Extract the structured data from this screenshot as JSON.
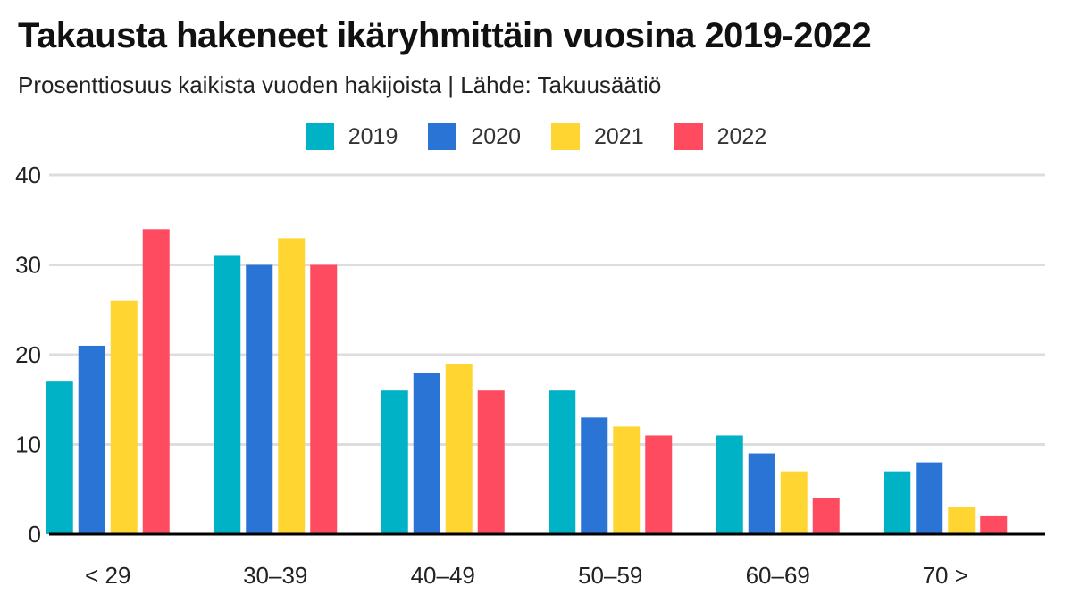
{
  "header": {
    "title": "Takausta hakeneet ikäryhmittäin vuosina 2019-2022",
    "subtitle": "Prosenttiosuus kaikista vuoden hakijoista | Lähde: Takuusäätiö"
  },
  "colors": {
    "2019": "#00b2c6",
    "2020": "#2a74d6",
    "2021": "#ffd532",
    "2022": "#ff4b5f",
    "grid": "#dddddd",
    "axis": "#000000"
  },
  "chart_data": {
    "type": "bar",
    "title": "Takausta hakeneet ikäryhmittäin vuosina 2019-2022",
    "subtitle": "Prosenttiosuus kaikista vuoden hakijoista | Lähde: Takuusäätiö",
    "xlabel": "",
    "ylabel": "",
    "categories": [
      "< 29",
      "30–39",
      "40–49",
      "50–59",
      "60–69",
      "70 >"
    ],
    "series": [
      {
        "name": "2019",
        "values": [
          17,
          31,
          16,
          16,
          11,
          7
        ]
      },
      {
        "name": "2020",
        "values": [
          21,
          30,
          18,
          13,
          9,
          8
        ]
      },
      {
        "name": "2021",
        "values": [
          26,
          33,
          19,
          12,
          7,
          3
        ]
      },
      {
        "name": "2022",
        "values": [
          34,
          30,
          16,
          11,
          4,
          2
        ]
      }
    ],
    "ylim": [
      0,
      40
    ],
    "yticks": [
      "0",
      "10",
      "20",
      "30",
      "40"
    ],
    "grid": true,
    "legend_position": "top-center"
  }
}
